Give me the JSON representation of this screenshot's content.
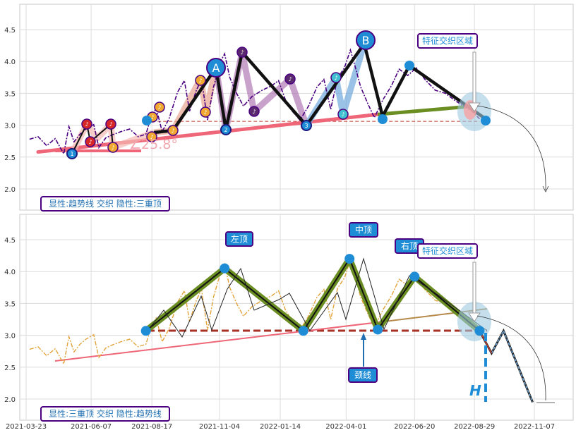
{
  "chart_data": [
    {
      "type": "line",
      "panel": "top",
      "title": "",
      "ylim": [
        1.7,
        4.9
      ],
      "yticks": [
        "2.0",
        "2.5",
        "3.0",
        "3.5",
        "4.0",
        "4.5"
      ],
      "legend_box": "显性:趋势线 交织 隐性:三重顶",
      "annotation_box": "特征交织区域",
      "angle_label": "∠25.8°",
      "peak_labels": [
        "A",
        "B"
      ],
      "wave_numbers": [
        "1",
        "2",
        "3"
      ],
      "price_series": [
        [
          "2021-03-27",
          2.78
        ],
        [
          "2021-04-06",
          2.82
        ],
        [
          "2021-04-16",
          2.68
        ],
        [
          "2021-04-26",
          2.79
        ],
        [
          "2021-05-06",
          2.55
        ],
        [
          "2021-05-12",
          2.98
        ],
        [
          "2021-05-18",
          2.74
        ],
        [
          "2021-05-25",
          2.86
        ],
        [
          "2021-06-01",
          2.94
        ],
        [
          "2021-06-10",
          3.01
        ],
        [
          "2021-06-16",
          2.65
        ],
        [
          "2021-06-24",
          2.8
        ],
        [
          "2021-07-02",
          2.85
        ],
        [
          "2021-07-12",
          2.9
        ],
        [
          "2021-07-22",
          2.94
        ],
        [
          "2021-08-01",
          2.82
        ],
        [
          "2021-08-10",
          2.86
        ],
        [
          "2021-08-16",
          3.12
        ],
        [
          "2021-08-22",
          3.27
        ],
        [
          "2021-08-29",
          2.9
        ],
        [
          "2021-09-06",
          3.1
        ],
        [
          "2021-09-16",
          3.52
        ],
        [
          "2021-09-24",
          3.7
        ],
        [
          "2021-09-30",
          3.22
        ],
        [
          "2021-10-08",
          3.55
        ],
        [
          "2021-10-14",
          3.72
        ],
        [
          "2021-10-21",
          3.08
        ],
        [
          "2021-10-28",
          3.6
        ],
        [
          "2021-11-06",
          4.02
        ],
        [
          "2021-11-10",
          4.12
        ],
        [
          "2021-11-16",
          3.75
        ],
        [
          "2021-11-24",
          3.5
        ],
        [
          "2021-12-02",
          3.3
        ],
        [
          "2021-12-12",
          3.45
        ],
        [
          "2021-12-24",
          3.55
        ],
        [
          "2022-01-04",
          3.62
        ],
        [
          "2022-01-12",
          3.7
        ],
        [
          "2022-01-20",
          3.4
        ],
        [
          "2022-01-28",
          3.22
        ],
        [
          "2022-02-06",
          3.08
        ],
        [
          "2022-02-16",
          3.3
        ],
        [
          "2022-02-26",
          3.6
        ],
        [
          "2022-03-06",
          3.72
        ],
        [
          "2022-03-14",
          3.25
        ],
        [
          "2022-03-22",
          3.74
        ],
        [
          "2022-03-30",
          3.9
        ],
        [
          "2022-04-06",
          4.18
        ],
        [
          "2022-04-12",
          3.9
        ],
        [
          "2022-04-18",
          3.6
        ],
        [
          "2022-04-26",
          3.35
        ],
        [
          "2022-05-04",
          3.12
        ],
        [
          "2022-05-14",
          3.4
        ],
        [
          "2022-05-24",
          3.62
        ],
        [
          "2022-06-02",
          3.88
        ],
        [
          "2022-06-12",
          3.78
        ],
        [
          "2022-06-22",
          3.9
        ],
        [
          "2022-07-02",
          3.72
        ],
        [
          "2022-07-14",
          3.55
        ],
        [
          "2022-07-26",
          3.5
        ],
        [
          "2022-08-05",
          3.4
        ],
        [
          "2022-08-16",
          3.3
        ],
        [
          "2022-08-26",
          3.22
        ],
        [
          "2022-09-04",
          3.1
        ]
      ],
      "trend_line": [
        [
          "2021-04-06",
          2.58
        ],
        [
          "2022-08-29",
          3.3
        ]
      ],
      "neckline": [
        [
          "2021-08-17",
          3.06
        ],
        [
          "2022-09-04",
          3.06
        ]
      ]
    },
    {
      "type": "line",
      "panel": "bottom",
      "title": "",
      "ylim": [
        1.7,
        4.9
      ],
      "yticks": [
        "2.0",
        "2.5",
        "3.0",
        "3.5",
        "4.0",
        "4.5"
      ],
      "xticks": [
        "2021-03-23",
        "2021-06-07",
        "2021-08-17",
        "2021-11-04",
        "2022-01-14",
        "2022-04-01",
        "2022-06-20",
        "2022-08-29",
        "2022-11-07"
      ],
      "legend_box": "显性:三重顶 交织 隐性:趋势线",
      "annotation_box": "特征交织区域",
      "callouts": {
        "left_top": "左顶",
        "middle_top": "中顶",
        "right_top": "右顶",
        "neckline": "颈线",
        "height": "H"
      },
      "pattern_points": [
        [
          "2021-08-10",
          3.07
        ],
        [
          "2021-11-10",
          4.05
        ],
        [
          "2022-02-10",
          3.07
        ],
        [
          "2022-04-05",
          4.2
        ],
        [
          "2022-05-08",
          3.09
        ],
        [
          "2022-06-20",
          3.92
        ],
        [
          "2022-09-04",
          3.07
        ]
      ],
      "projection": [
        [
          "2022-09-04",
          3.07
        ],
        [
          "2022-09-18",
          2.72
        ],
        [
          "2022-10-02",
          3.07
        ],
        [
          "2022-11-05",
          1.95
        ]
      ]
    }
  ]
}
